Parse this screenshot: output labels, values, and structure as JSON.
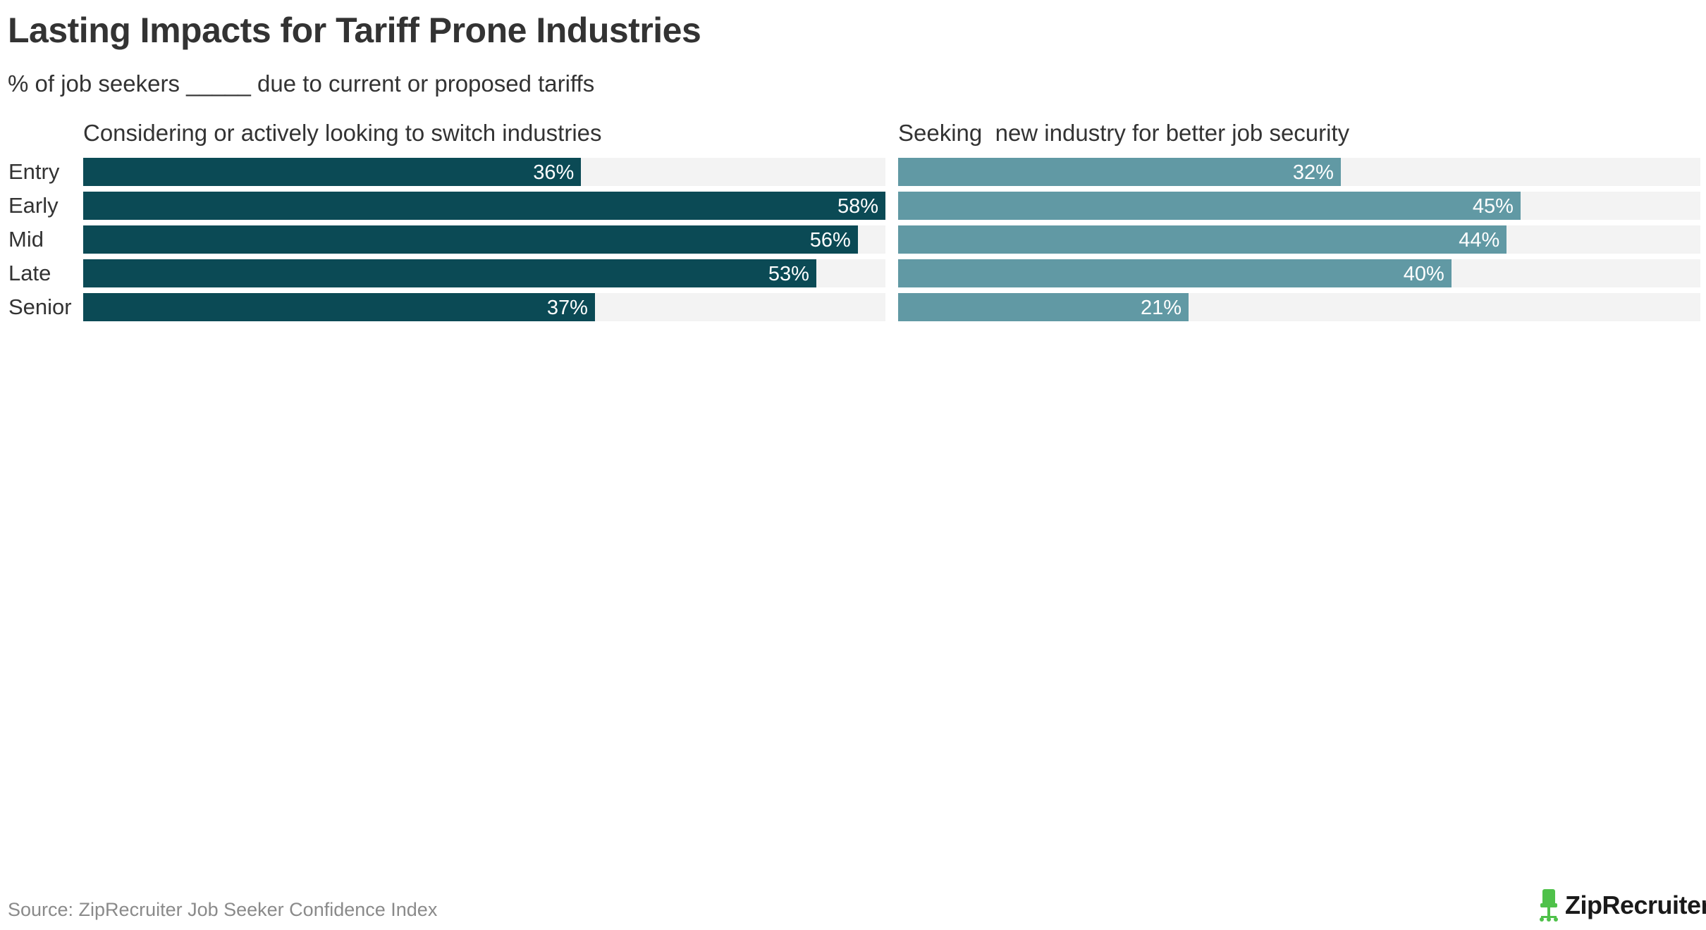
{
  "title": "Lasting Impacts for Tariff Prone Industries",
  "subtitle": "% of job seekers _____ due to current or proposed tariffs",
  "source": "Source: ZipRecruiter Job Seeker Confidence Index",
  "logo": {
    "text": "ZipRecruiter",
    "icon": "zip-chair-icon",
    "mark": "®"
  },
  "colors": {
    "series1": "#0b4a55",
    "series2": "#6199a4",
    "track": "#f3f3f3",
    "logo_green": "#4fc14a"
  },
  "chart_data": {
    "type": "bar",
    "orientation": "horizontal",
    "categories": [
      "Entry",
      "Early",
      "Mid",
      "Late",
      "Senior"
    ],
    "xlim": [
      0,
      58
    ],
    "series": [
      {
        "name": "Considering or actively looking to switch industries",
        "values": [
          36,
          58,
          56,
          53,
          37
        ],
        "labels": [
          "36%",
          "58%",
          "56%",
          "53%",
          "37%"
        ]
      },
      {
        "name": "Seeking  new industry for better job security",
        "values": [
          32,
          45,
          44,
          40,
          21
        ],
        "labels": [
          "32%",
          "45%",
          "44%",
          "40%",
          "21%"
        ]
      }
    ],
    "grid": false,
    "legend": "none"
  }
}
